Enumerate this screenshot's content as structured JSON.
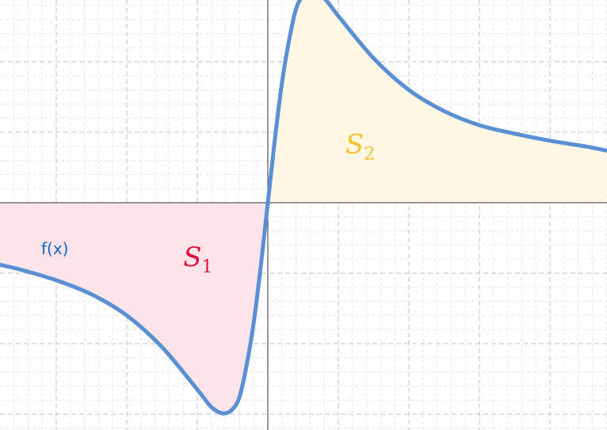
{
  "chart_data": {
    "type": "line",
    "title": "",
    "xlabel": "",
    "ylabel": "",
    "xlim": [
      -3.8,
      4.8
    ],
    "ylim": [
      -3.2,
      2.9
    ],
    "grid": true,
    "function_label": "f(x)",
    "x": [
      -3.8,
      -3.5,
      -3,
      -2.5,
      -2,
      -1.5,
      -1,
      -0.8,
      -0.63,
      -0.5,
      -0.4,
      -0.3,
      -0.2,
      -0.1,
      0,
      0.1,
      0.2,
      0.3,
      0.4,
      0.5,
      0.63,
      0.8,
      1,
      1.5,
      2,
      2.5,
      3,
      3.5,
      4,
      4.5,
      4.8
    ],
    "y": [
      -0.88,
      -0.95,
      -1.1,
      -1.3,
      -1.6,
      -2.05,
      -2.65,
      -2.9,
      -2.99,
      -2.93,
      -2.75,
      -2.3,
      -1.7,
      -0.9,
      0,
      0.9,
      1.7,
      2.3,
      2.75,
      2.93,
      2.99,
      2.9,
      2.65,
      2.05,
      1.6,
      1.3,
      1.1,
      0.98,
      0.88,
      0.8,
      0.74
    ],
    "colors": {
      "curve": "#5b8fd4",
      "s1_fill": "#fde4ea",
      "s1_text": "#e0103a",
      "s2_fill": "#fff6e4",
      "s2_text": "#f2c12e",
      "fx_text": "#1565c0"
    },
    "regions": [
      {
        "name": "S_1",
        "main": "S",
        "sub": "1",
        "x_range": [
          -3.8,
          0
        ],
        "label_at": [
          -1.2,
          -0.9
        ]
      },
      {
        "name": "S_2",
        "main": "S",
        "sub": "2",
        "x_range": [
          0,
          4.8
        ],
        "label_at": [
          1.1,
          0.7
        ]
      }
    ]
  }
}
